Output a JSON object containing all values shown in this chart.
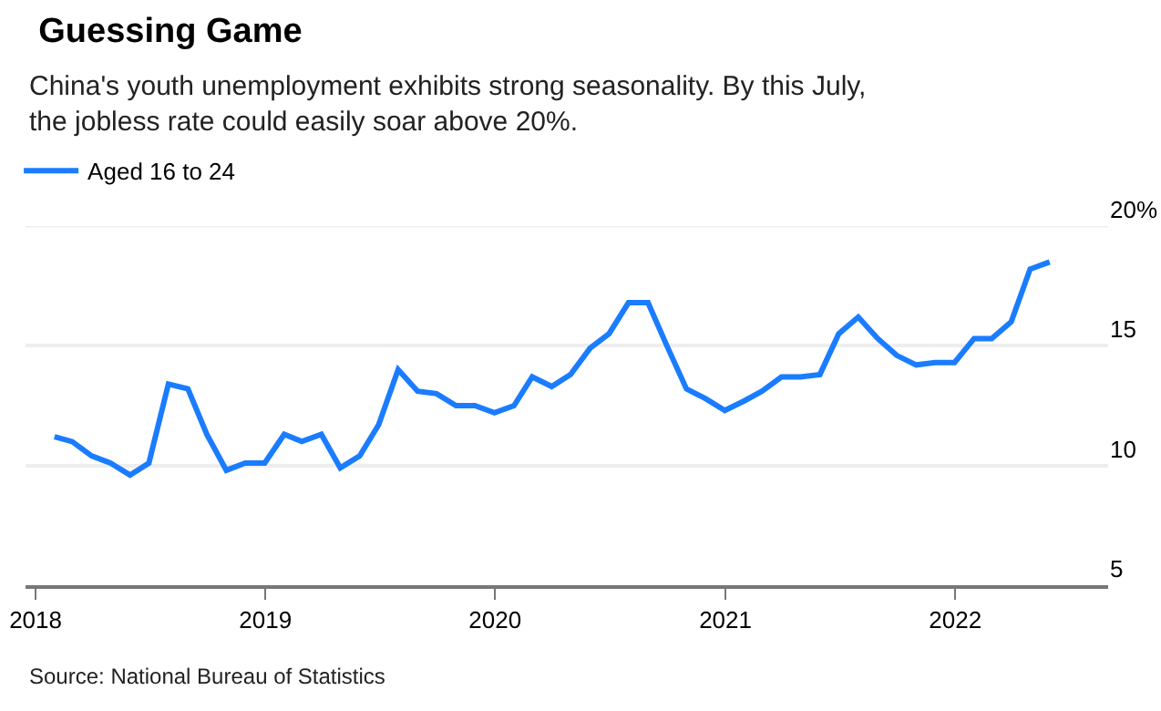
{
  "chart_data": {
    "type": "line",
    "title": "Guessing Game",
    "subtitle": "China's youth unemployment exhibits strong seasonality. By this July, the jobless rate could easily soar above 20%.",
    "x": [
      "2018-01-31",
      "2018-02-28",
      "2018-03-31",
      "2018-04-30",
      "2018-05-31",
      "2018-06-30",
      "2018-07-31",
      "2018-08-31",
      "2018-09-30",
      "2018-10-31",
      "2018-11-30",
      "2018-12-31",
      "2019-01-31",
      "2019-02-28",
      "2019-03-31",
      "2019-04-30",
      "2019-05-31",
      "2019-06-30",
      "2019-07-31",
      "2019-08-31",
      "2019-09-30",
      "2019-10-31",
      "2019-11-30",
      "2019-12-31",
      "2020-01-31",
      "2020-02-29",
      "2020-03-31",
      "2020-04-30",
      "2020-05-31",
      "2020-06-30",
      "2020-07-31",
      "2020-08-31",
      "2020-09-30",
      "2020-10-31",
      "2020-11-30",
      "2020-12-31",
      "2021-01-31",
      "2021-02-28",
      "2021-03-31",
      "2021-04-30",
      "2021-05-31",
      "2021-06-30",
      "2021-07-31",
      "2021-08-31",
      "2021-09-30",
      "2021-10-31",
      "2021-11-30",
      "2021-12-31",
      "2022-01-31",
      "2022-02-28",
      "2022-03-31",
      "2022-04-30",
      "2022-05-31"
    ],
    "series": [
      {
        "name": "Aged 16 to 24",
        "color": "#1a7cff",
        "values": [
          11.2,
          11.0,
          10.4,
          10.1,
          9.6,
          10.1,
          13.4,
          13.2,
          11.3,
          9.8,
          10.1,
          10.1,
          11.3,
          11.0,
          11.3,
          9.9,
          10.4,
          11.7,
          14.0,
          13.1,
          13.0,
          12.5,
          12.5,
          12.2,
          12.5,
          13.7,
          13.3,
          13.8,
          14.9,
          15.5,
          16.8,
          16.8,
          15.0,
          13.2,
          12.8,
          12.3,
          12.7,
          13.1,
          13.7,
          13.7,
          13.8,
          15.5,
          16.2,
          15.3,
          14.6,
          14.2,
          14.3,
          14.3,
          15.3,
          15.3,
          16.0,
          18.2,
          18.5
        ]
      }
    ],
    "xlim": [
      "2017-12-16",
      "2022-09-01"
    ],
    "xticks": [
      {
        "value": "2018-01-01",
        "label": "2018"
      },
      {
        "value": "2019-01-01",
        "label": "2019"
      },
      {
        "value": "2020-01-01",
        "label": "2020"
      },
      {
        "value": "2021-01-01",
        "label": "2021"
      },
      {
        "value": "2022-01-01",
        "label": "2022"
      }
    ],
    "ylim": [
      5,
      20
    ],
    "yticks": [
      5,
      10,
      15,
      {
        "value": 20,
        "label": "20%"
      }
    ],
    "grid": "y",
    "legend": "top left",
    "marker": "none",
    "line_style": "solid",
    "annotations": [
      "Source: National Bureau of Statistics"
    ]
  }
}
